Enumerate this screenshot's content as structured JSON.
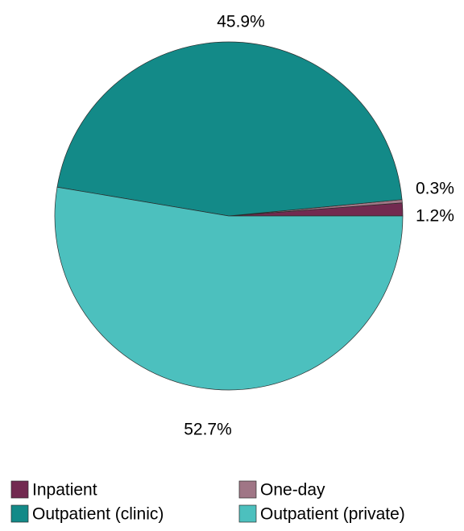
{
  "chart_data": {
    "type": "pie",
    "title": "",
    "categories": [
      "Inpatient",
      "One-day",
      "Outpatient (clinic)",
      "Outpatient (private)"
    ],
    "values": [
      1.2,
      0.3,
      45.9,
      52.7
    ],
    "value_labels": [
      "1.2%",
      "0.3%",
      "45.9%",
      "52.7%"
    ],
    "colors": [
      "#722a50",
      "#a07686",
      "#138a88",
      "#4cc0be"
    ],
    "start_angle_deg": 0,
    "direction": "counterclockwise",
    "legend": {
      "position": "bottom",
      "entries": [
        "Inpatient",
        "One-day",
        "Outpatient (clinic)",
        "Outpatient (private)"
      ]
    }
  }
}
